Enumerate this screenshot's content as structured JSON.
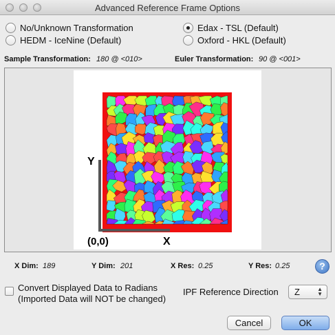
{
  "window": {
    "title": "Advanced Reference Frame Options"
  },
  "transforms": {
    "options": [
      {
        "label": "No/Unknown Transformation",
        "selected": false
      },
      {
        "label": "Edax - TSL (Default)",
        "selected": true
      },
      {
        "label": "HEDM - IceNine (Default)",
        "selected": false
      },
      {
        "label": "Oxford - HKL (Default)",
        "selected": false
      }
    ]
  },
  "sample": {
    "label": "Sample Transformation:",
    "value": "180 @ <010>"
  },
  "euler": {
    "label": "Euler Transformation:",
    "value": "90 @ <001>"
  },
  "axes": {
    "y": "Y",
    "x": "X",
    "origin": "(0,0)"
  },
  "dims": {
    "xdim_label": "X Dim:",
    "xdim": "189",
    "ydim_label": "Y Dim:",
    "ydim": "201",
    "xres_label": "X Res:",
    "xres": "0.25",
    "yres_label": "Y Res:",
    "yres": "0.25"
  },
  "convert": {
    "line1": "Convert Displayed Data to Radians",
    "line2": "(Imported Data will NOT be changed)",
    "checked": false
  },
  "ipf": {
    "label": "IPF Reference Direction",
    "value": "Z"
  },
  "buttons": {
    "cancel": "Cancel",
    "ok": "OK"
  },
  "help": {
    "icon": "question-icon",
    "glyph": "?"
  }
}
